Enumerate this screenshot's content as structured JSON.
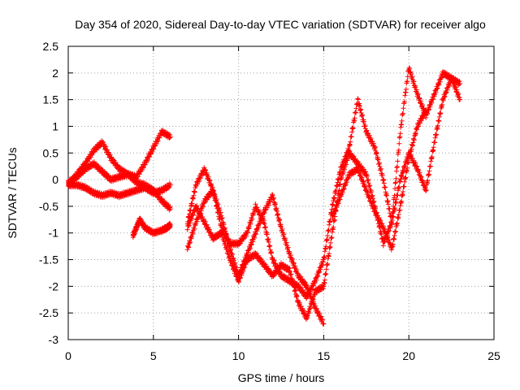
{
  "chart_data": {
    "type": "scatter",
    "title": "Day 354 of 2020, Sidereal Day-to-day VTEC variation (SDTVAR) for receiver algo",
    "xlabel": "GPS time / hours",
    "ylabel": "SDTVAR / TECUs",
    "xlim": [
      0,
      25
    ],
    "ylim": [
      -3,
      2.5
    ],
    "xticks": [
      "0",
      "5",
      "10",
      "15",
      "20",
      "25"
    ],
    "yticks": [
      "-3",
      "-2.5",
      "-2",
      "-1.5",
      "-1",
      "-0.5",
      "0",
      "0.5",
      "1",
      "1.5",
      "2",
      "2.5"
    ],
    "grid": true,
    "marker": "+",
    "colors": {
      "series": "#ff0000",
      "grid": "#a0a0a0",
      "axis": "#000000"
    },
    "series": [
      {
        "x": [
          0,
          0.5,
          1,
          1.5,
          2,
          2.5,
          3,
          3.5,
          4,
          4.5,
          5,
          5.5,
          6
        ],
        "y": [
          -0.1,
          0.1,
          0.3,
          0.55,
          0.7,
          0.4,
          0.2,
          0.1,
          0.05,
          0.3,
          0.6,
          0.9,
          0.8
        ]
      },
      {
        "x": [
          0,
          0.5,
          1,
          1.5,
          2,
          2.5,
          3,
          3.5,
          4,
          4.5,
          5,
          5.5,
          6
        ],
        "y": [
          -0.05,
          0.05,
          0.2,
          0.3,
          0.15,
          0.0,
          0.05,
          0.1,
          -0.05,
          -0.1,
          -0.2,
          -0.4,
          -0.55
        ]
      },
      {
        "x": [
          0,
          0.5,
          1,
          1.5,
          2,
          2.5,
          3,
          3.5,
          4,
          4.5,
          5,
          5.5,
          6
        ],
        "y": [
          -0.1,
          -0.1,
          -0.15,
          -0.25,
          -0.3,
          -0.25,
          -0.3,
          -0.25,
          -0.2,
          -0.15,
          -0.25,
          -0.2,
          -0.1
        ]
      },
      {
        "x": [
          3.8,
          4.0,
          4.2,
          4.5,
          5.0,
          5.5,
          5.8,
          6.0
        ],
        "y": [
          -1.05,
          -0.9,
          -0.75,
          -0.9,
          -1.0,
          -0.95,
          -0.9,
          -0.85
        ]
      },
      {
        "x": [
          7,
          7.5,
          8,
          8.5,
          9,
          9.5,
          10,
          10.5,
          11,
          11.5,
          12,
          12.5,
          13,
          13.5,
          14,
          14.5,
          15
        ],
        "y": [
          -0.8,
          -0.1,
          0.2,
          -0.2,
          -0.9,
          -1.2,
          -1.2,
          -1.0,
          -0.5,
          -0.8,
          -1.5,
          -1.8,
          -1.9,
          -2.0,
          -2.2,
          -1.9,
          -1.5
        ]
      },
      {
        "x": [
          7,
          7.5,
          8,
          8.5,
          9,
          9.5,
          10,
          10.5,
          11,
          11.5,
          12,
          12.5,
          13,
          13.5,
          14,
          14.5,
          15
        ],
        "y": [
          -0.9,
          -0.5,
          -0.8,
          -1.1,
          -1.0,
          -1.5,
          -1.9,
          -1.5,
          -1.4,
          -1.6,
          -1.8,
          -1.6,
          -1.7,
          -2.3,
          -2.6,
          -2.1,
          -2.0
        ]
      },
      {
        "x": [
          7,
          7.5,
          8,
          8.5,
          9,
          9.5,
          10,
          10.5,
          11,
          11.5,
          12,
          12.5,
          13,
          13.5,
          14,
          14.5,
          15
        ],
        "y": [
          -1.3,
          -0.8,
          -0.4,
          -0.2,
          -0.7,
          -1.3,
          -1.8,
          -1.4,
          -1.0,
          -0.6,
          -0.3,
          -0.9,
          -1.4,
          -1.8,
          -2.0,
          -2.4,
          -2.7
        ]
      },
      {
        "x": [
          15,
          15.5,
          16,
          16.5,
          17,
          17.5,
          18,
          18.5,
          19,
          19.5,
          20,
          20.5,
          21,
          21.5,
          22,
          22.5,
          23
        ],
        "y": [
          -2.0,
          -1.0,
          0.0,
          0.5,
          0.3,
          0.1,
          -0.5,
          -1.2,
          -0.8,
          0.0,
          0.5,
          0.2,
          -0.2,
          0.7,
          1.5,
          1.9,
          1.5
        ]
      },
      {
        "x": [
          15,
          15.5,
          16,
          16.5,
          17,
          17.5,
          18,
          18.5,
          19,
          19.5,
          20,
          20.5,
          21,
          21.5,
          22,
          22.5,
          23
        ],
        "y": [
          -1.5,
          -0.5,
          0.2,
          0.6,
          1.5,
          0.9,
          0.6,
          0.0,
          -0.8,
          0.9,
          2.1,
          1.6,
          1.2,
          1.6,
          2.0,
          1.9,
          1.8
        ]
      },
      {
        "x": [
          15.5,
          16,
          16.5,
          17,
          17.5,
          18,
          18.5,
          19,
          19.5,
          20,
          20.5,
          21
        ],
        "y": [
          -0.7,
          -0.3,
          0.1,
          0.2,
          -0.2,
          -0.6,
          -0.9,
          -1.3,
          -0.5,
          0.4,
          1.0,
          1.3
        ]
      }
    ]
  }
}
